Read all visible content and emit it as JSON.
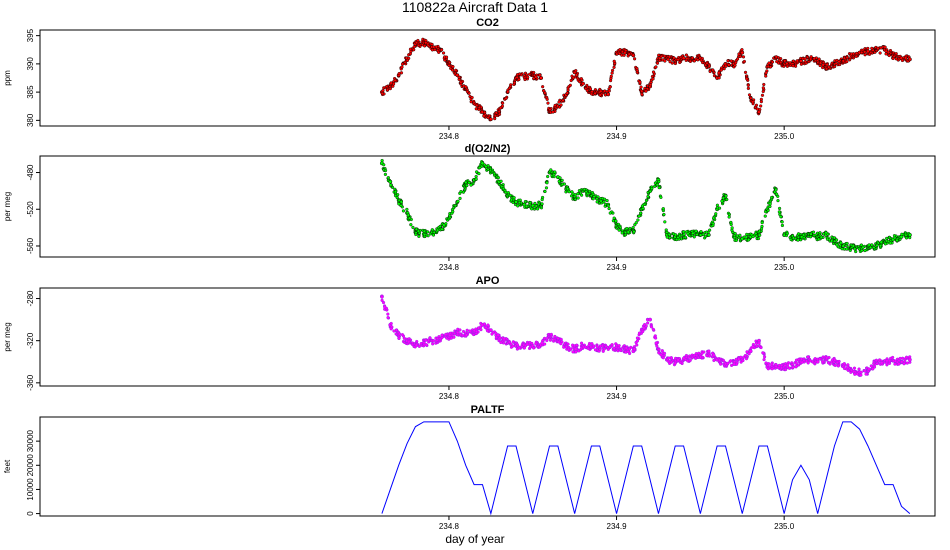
{
  "main_title": "110822a   Aircraft Data 1",
  "xlabel": "day of year",
  "x_ticks": [
    "234.8",
    "234.9",
    "235.0"
  ],
  "chart_data": [
    {
      "type": "scatter",
      "title": "CO2",
      "ylabel": "ppm",
      "color": "#ff0000",
      "point_edge_color": "#000000",
      "x_range": [
        234.556,
        235.09
      ],
      "ylim": [
        379,
        396
      ],
      "y_ticks": [
        "380",
        "385",
        "390",
        "395"
      ],
      "series": [
        {
          "x": [
            234.76,
            234.765,
            234.77,
            234.775,
            234.78,
            234.785,
            234.79,
            234.795,
            234.8,
            234.805,
            234.81,
            234.815,
            234.82,
            234.825,
            234.83,
            234.835,
            234.84,
            234.845,
            234.85,
            234.855,
            234.86,
            234.865,
            234.87,
            234.875,
            234.88,
            234.885,
            234.89,
            234.895,
            234.9,
            234.905,
            234.91,
            234.915,
            234.92,
            234.925,
            234.93,
            234.935,
            234.94,
            234.945,
            234.95,
            234.955,
            234.96,
            234.965,
            234.97,
            234.975,
            234.98,
            234.985,
            234.99,
            234.995,
            235.0,
            235.005,
            235.01,
            235.015,
            235.02,
            235.025,
            235.03,
            235.035,
            235.04,
            235.045,
            235.05,
            235.055,
            235.06,
            235.065,
            235.07,
            235.075
          ],
          "y": [
            385,
            386,
            388,
            391,
            393.5,
            393.8,
            393,
            392.5,
            390,
            388,
            385.5,
            383,
            381.5,
            380.2,
            381.5,
            385,
            387.5,
            387.8,
            388,
            387.5,
            381.5,
            382.5,
            384.5,
            388.5,
            386.5,
            385,
            385,
            384.6,
            392,
            392,
            391.5,
            385,
            386,
            391,
            391,
            390.5,
            391,
            391,
            391,
            389.5,
            387.5,
            390,
            390,
            392,
            384,
            381.5,
            389.5,
            391,
            390,
            390,
            390.5,
            390.8,
            390.5,
            389.5,
            390,
            390.5,
            391.5,
            392,
            392.2,
            392.4,
            392.5,
            391.5,
            391,
            390.8
          ]
        }
      ]
    },
    {
      "type": "scatter",
      "title": "d(O2/N2)",
      "ylabel": "per meg",
      "color": "#00ff00",
      "point_edge_color": "#000000",
      "x_range": [
        234.556,
        235.09
      ],
      "ylim": [
        -572,
        -462
      ],
      "y_ticks": [
        "-480",
        "-520",
        "-560"
      ],
      "series": [
        {
          "x": [
            234.76,
            234.765,
            234.77,
            234.775,
            234.78,
            234.785,
            234.79,
            234.795,
            234.8,
            234.805,
            234.81,
            234.815,
            234.82,
            234.825,
            234.83,
            234.835,
            234.84,
            234.845,
            234.85,
            234.855,
            234.86,
            234.865,
            234.87,
            234.875,
            234.88,
            234.885,
            234.89,
            234.895,
            234.9,
            234.905,
            234.91,
            234.915,
            234.92,
            234.925,
            234.93,
            234.935,
            234.94,
            234.945,
            234.95,
            234.955,
            234.96,
            234.965,
            234.97,
            234.975,
            234.98,
            234.985,
            234.99,
            234.995,
            235.0,
            235.005,
            235.01,
            235.015,
            235.02,
            235.025,
            235.03,
            235.035,
            235.04,
            235.045,
            235.05,
            235.055,
            235.06,
            235.065,
            235.07,
            235.075
          ],
          "y": [
            -470,
            -490,
            -510,
            -524,
            -545,
            -547,
            -545,
            -542,
            -530,
            -512,
            -493,
            -488,
            -470,
            -478,
            -490,
            -505,
            -512,
            -515,
            -516,
            -516,
            -480,
            -485,
            -498,
            -508,
            -500,
            -505,
            -510,
            -515,
            -538,
            -545,
            -543,
            -520,
            -500,
            -488,
            -548,
            -550,
            -548,
            -547,
            -548,
            -548,
            -520,
            -505,
            -550,
            -552,
            -550,
            -548,
            -520,
            -498,
            -548,
            -550,
            -550,
            -547,
            -550,
            -548,
            -555,
            -560,
            -562,
            -563,
            -562,
            -560,
            -556,
            -553,
            -550,
            -548
          ]
        }
      ]
    },
    {
      "type": "scatter",
      "title": "APO",
      "ylabel": "per meg",
      "color": "#ff00ff",
      "point_edge_color": "#8a2be2",
      "x_range": [
        234.556,
        235.09
      ],
      "ylim": [
        -363,
        -270
      ],
      "y_ticks": [
        "-280",
        "-320",
        "-360"
      ],
      "series": [
        {
          "x": [
            234.76,
            234.765,
            234.77,
            234.775,
            234.78,
            234.785,
            234.79,
            234.795,
            234.8,
            234.805,
            234.81,
            234.815,
            234.82,
            234.825,
            234.83,
            234.835,
            234.84,
            234.845,
            234.85,
            234.855,
            234.86,
            234.865,
            234.87,
            234.875,
            234.88,
            234.885,
            234.89,
            234.895,
            234.9,
            234.905,
            234.91,
            234.915,
            234.92,
            234.925,
            234.93,
            234.935,
            234.94,
            234.945,
            234.95,
            234.955,
            234.96,
            234.965,
            234.97,
            234.975,
            234.98,
            234.985,
            234.99,
            234.995,
            235.0,
            235.005,
            235.01,
            235.015,
            235.02,
            235.025,
            235.03,
            235.035,
            235.04,
            235.045,
            235.05,
            235.055,
            235.06,
            235.065,
            235.07,
            235.075
          ],
          "y": [
            -278,
            -305,
            -315,
            -320,
            -323,
            -322,
            -320,
            -318,
            -316,
            -312,
            -313,
            -312,
            -305,
            -310,
            -318,
            -322,
            -325,
            -324,
            -325,
            -324,
            -316,
            -320,
            -325,
            -328,
            -325,
            -326,
            -327,
            -327,
            -326,
            -328,
            -330,
            -310,
            -300,
            -328,
            -338,
            -340,
            -338,
            -336,
            -334,
            -332,
            -338,
            -343,
            -340,
            -338,
            -330,
            -320,
            -345,
            -343,
            -345,
            -343,
            -340,
            -338,
            -340,
            -338,
            -340,
            -343,
            -348,
            -350,
            -349,
            -340,
            -340,
            -339,
            -340,
            -338
          ]
        }
      ]
    },
    {
      "type": "line",
      "title": "PALTF",
      "ylabel": "feet",
      "color": "#0000ff",
      "x_range": [
        234.556,
        235.09
      ],
      "ylim": [
        -1000,
        40000
      ],
      "y_ticks": [
        "0",
        "10000",
        "20000",
        "30000"
      ],
      "series": [
        {
          "x": [
            234.76,
            234.765,
            234.77,
            234.775,
            234.78,
            234.785,
            234.79,
            234.795,
            234.8,
            234.805,
            234.81,
            234.815,
            234.82,
            234.825,
            234.83,
            234.835,
            234.84,
            234.845,
            234.85,
            234.855,
            234.86,
            234.865,
            234.87,
            234.875,
            234.88,
            234.885,
            234.89,
            234.895,
            234.9,
            234.905,
            234.91,
            234.915,
            234.92,
            234.925,
            234.93,
            234.935,
            234.94,
            234.945,
            234.95,
            234.955,
            234.96,
            234.965,
            234.97,
            234.975,
            234.98,
            234.985,
            234.99,
            234.995,
            235.0,
            235.005,
            235.01,
            235.015,
            235.02,
            235.025,
            235.03,
            235.035,
            235.04,
            235.045,
            235.05,
            235.055,
            235.06,
            235.065,
            235.07,
            235.075
          ],
          "y": [
            0,
            10000,
            20000,
            29000,
            36000,
            38000,
            38000,
            38000,
            38000,
            30000,
            20000,
            12000,
            12000,
            0,
            14000,
            28000,
            28000,
            14000,
            0,
            14000,
            28000,
            28000,
            14000,
            0,
            14000,
            28000,
            28000,
            14000,
            0,
            14000,
            28000,
            28000,
            14000,
            0,
            14000,
            28000,
            28000,
            14000,
            0,
            14000,
            28000,
            28000,
            14000,
            0,
            14000,
            28000,
            28000,
            14000,
            0,
            14000,
            20000,
            14000,
            0,
            14000,
            28000,
            38000,
            38000,
            35000,
            28000,
            20000,
            12000,
            12000,
            3000,
            0
          ]
        }
      ]
    }
  ]
}
